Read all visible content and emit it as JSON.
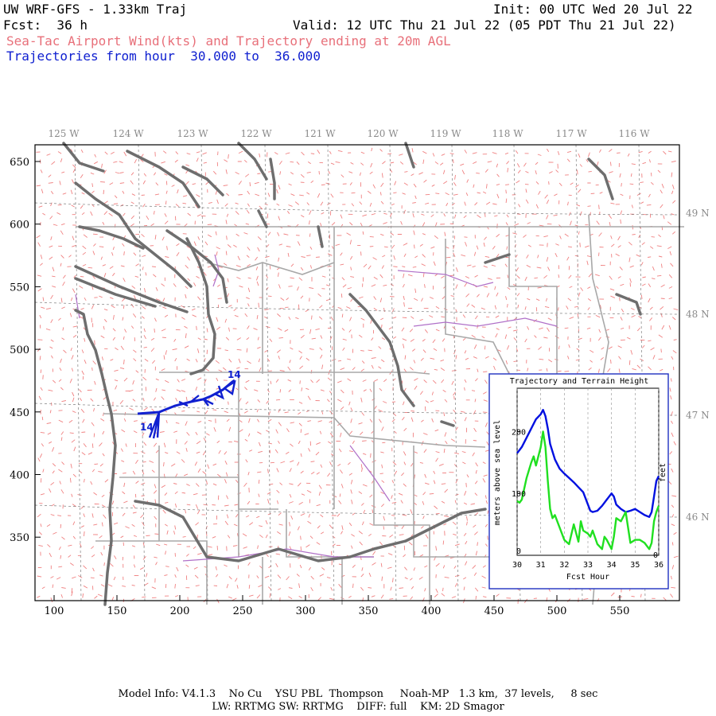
{
  "header": {
    "model_title": "UW WRF-GFS - 1.33km Traj",
    "init": "Init: 00 UTC Wed 20 Jul 22",
    "fcst": "Fcst:  36 h",
    "valid": "Valid: 12 UTC Thu 21 Jul 22 (05 PDT Thu 21 Jul 22)",
    "product": "Sea-Tac Airport Wind(kts) and Trajectory ending at 20m AGL",
    "traj_range": "Trajectories from hour  30.000 to  36.000"
  },
  "map": {
    "x_ticks": [
      "100",
      "150",
      "200",
      "250",
      "300",
      "350",
      "400",
      "450",
      "500",
      "550"
    ],
    "y_ticks": [
      "650",
      "600",
      "550",
      "500",
      "450",
      "400",
      "350"
    ],
    "lon_labels": [
      "125 W",
      "124 W",
      "123 W",
      "122 W",
      "121 W",
      "120 W",
      "119 W",
      "118 W",
      "117 W",
      "116 W"
    ],
    "lat_labels": [
      "49 N",
      "48 N",
      "47 N",
      "46 N"
    ],
    "trajectory_start_label": "14",
    "trajectory_end_label": "14",
    "colors": {
      "wind_barbs": "#f08080",
      "coastline": "#707070",
      "state_lines": "#a8a8a8",
      "rivers": "#b070c8",
      "trajectory": "#1020d0",
      "grid": "#808080"
    }
  },
  "inset": {
    "title": "Trajectory and Terrain Height",
    "xlabel": "Fcst Hour",
    "ylabel": "meters above sea level",
    "ylabel_right": "feet",
    "x_ticks": [
      "30",
      "31",
      "32",
      "33",
      "34",
      "35",
      "36"
    ],
    "y_ticks": [
      "0",
      "100",
      "200"
    ],
    "y_ticks_right": [
      "0"
    ]
  },
  "chart_data": {
    "type": "line",
    "title": "Trajectory and Terrain Height",
    "xlabel": "Fcst Hour",
    "ylabel": "meters above sea level",
    "xlim": [
      30,
      36
    ],
    "ylim": [
      0,
      270
    ],
    "series": [
      {
        "color": "#0010e0",
        "x": [
          30,
          30.2,
          30.4,
          30.6,
          30.8,
          31.0,
          31.1,
          31.2,
          31.3,
          31.4,
          31.6,
          31.8,
          32.0,
          32.2,
          32.4,
          32.6,
          32.8,
          33.0,
          33.1,
          33.2,
          33.4,
          33.6,
          33.8,
          34.0,
          34.1,
          34.2,
          34.4,
          34.6,
          34.8,
          35.0,
          35.2,
          35.4,
          35.6,
          35.7,
          35.8,
          35.9,
          36.0
        ],
        "y": [
          165,
          175,
          190,
          205,
          220,
          228,
          235,
          225,
          205,
          180,
          155,
          140,
          132,
          125,
          118,
          110,
          102,
          82,
          72,
          70,
          72,
          80,
          90,
          100,
          95,
          82,
          75,
          70,
          72,
          75,
          70,
          65,
          62,
          70,
          95,
          120,
          128
        ]
      },
      {
        "color": "#20e020",
        "x": [
          30,
          30.1,
          30.2,
          30.4,
          30.6,
          30.7,
          30.8,
          31.0,
          31.1,
          31.2,
          31.3,
          31.4,
          31.5,
          31.6,
          31.8,
          32.0,
          32.2,
          32.4,
          32.6,
          32.7,
          32.8,
          33.0,
          33.1,
          33.2,
          33.4,
          33.6,
          33.7,
          33.8,
          34.0,
          34.1,
          34.2,
          34.4,
          34.6,
          34.8,
          35.0,
          35.2,
          35.4,
          35.6,
          35.7,
          35.8,
          35.9,
          36.0
        ],
        "y": [
          88,
          85,
          90,
          125,
          150,
          160,
          145,
          175,
          200,
          175,
          120,
          75,
          60,
          65,
          45,
          25,
          18,
          50,
          22,
          55,
          40,
          35,
          30,
          40,
          18,
          10,
          30,
          25,
          10,
          30,
          60,
          55,
          70,
          20,
          25,
          25,
          20,
          10,
          20,
          55,
          70,
          80
        ]
      }
    ]
  },
  "footer": {
    "line1": "Model Info: V4.1.3    No Cu    YSU PBL  Thompson     Noah-MP   1.3 km,  37 levels,     8 sec",
    "line2": "LW: RRTMG SW: RRTMG    DIFF: full    KM: 2D Smagor"
  }
}
